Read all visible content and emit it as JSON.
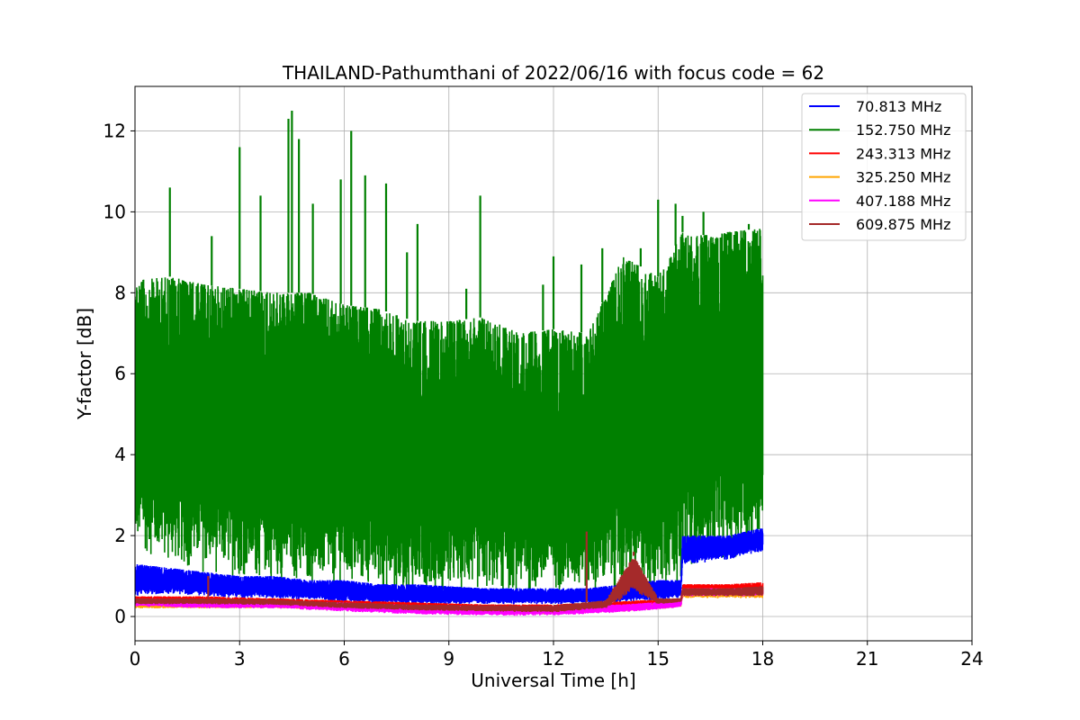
{
  "chart_data": {
    "type": "line",
    "title": "THAILAND-Pathumthani of 2022/06/16 with focus code = 62",
    "xlabel": "Universal Time [h]",
    "ylabel": "Y-factor [dB]",
    "xlim": [
      0,
      24
    ],
    "ylim": [
      -0.6,
      13.1
    ],
    "xticks": [
      0,
      3,
      6,
      9,
      12,
      15,
      18,
      21,
      24
    ],
    "yticks": [
      0,
      2,
      4,
      6,
      8,
      10,
      12
    ],
    "grid": true,
    "legend_position": "top-right",
    "series": [
      {
        "name": " 70.813 MHz",
        "color": "#0000ff",
        "x": [
          0,
          1,
          2,
          3,
          4,
          5,
          6,
          7,
          8,
          9,
          10,
          11,
          12,
          13,
          14,
          15,
          15.65,
          15.7,
          16,
          17,
          18
        ],
        "low": [
          0.5,
          0.55,
          0.5,
          0.45,
          0.45,
          0.4,
          0.35,
          0.3,
          0.3,
          0.3,
          0.3,
          0.3,
          0.3,
          0.3,
          0.35,
          0.4,
          0.45,
          1.3,
          1.3,
          1.4,
          1.6
        ],
        "high": [
          1.3,
          1.2,
          1.1,
          1.0,
          1.0,
          0.9,
          0.9,
          0.8,
          0.8,
          0.75,
          0.7,
          0.7,
          0.7,
          0.7,
          0.8,
          0.9,
          0.9,
          2.0,
          2.0,
          2.0,
          2.2
        ]
      },
      {
        "name": "152.750 MHz",
        "color": "#008000",
        "x": [
          0,
          1,
          2,
          3,
          4,
          5,
          6,
          7,
          8,
          9,
          10,
          11,
          12,
          13,
          14,
          15,
          15.65,
          15.7,
          16,
          17,
          18
        ],
        "low": [
          1.6,
          1.2,
          1.0,
          0.9,
          0.8,
          0.7,
          0.6,
          0.6,
          0.5,
          0.5,
          0.5,
          0.5,
          0.5,
          0.5,
          0.5,
          0.5,
          0.7,
          1.4,
          1.2,
          1.4,
          1.6
        ],
        "high": [
          8.3,
          8.4,
          8.2,
          8.1,
          8.0,
          8.0,
          7.7,
          7.6,
          7.3,
          7.3,
          7.4,
          7.0,
          7.1,
          7.0,
          8.9,
          8.4,
          9.4,
          9.5,
          9.4,
          9.5,
          9.6
        ],
        "spikes": [
          [
            1.0,
            10.6
          ],
          [
            2.2,
            9.4
          ],
          [
            3.0,
            11.6
          ],
          [
            3.6,
            10.4
          ],
          [
            4.4,
            12.3
          ],
          [
            4.5,
            12.5
          ],
          [
            4.7,
            11.8
          ],
          [
            5.1,
            10.2
          ],
          [
            5.9,
            10.8
          ],
          [
            6.2,
            12.0
          ],
          [
            6.6,
            10.9
          ],
          [
            7.2,
            10.7
          ],
          [
            7.8,
            9.0
          ],
          [
            8.1,
            9.7
          ],
          [
            9.5,
            8.1
          ],
          [
            9.9,
            10.4
          ],
          [
            11.7,
            8.2
          ],
          [
            12.0,
            8.9
          ],
          [
            12.8,
            8.7
          ],
          [
            13.4,
            9.1
          ],
          [
            14.5,
            9.1
          ],
          [
            15.0,
            10.3
          ],
          [
            15.5,
            10.2
          ],
          [
            15.7,
            9.9
          ],
          [
            16.3,
            10.0
          ],
          [
            17.0,
            9.3
          ],
          [
            17.6,
            9.7
          ]
        ]
      },
      {
        "name": "243.313 MHz",
        "color": "#ff0000",
        "x": [
          0,
          2,
          4,
          6,
          8,
          10,
          12,
          14,
          15.65,
          15.7,
          16,
          17,
          18
        ],
        "low": [
          0.3,
          0.3,
          0.28,
          0.22,
          0.18,
          0.14,
          0.1,
          0.2,
          0.28,
          0.55,
          0.55,
          0.55,
          0.55
        ],
        "high": [
          0.5,
          0.5,
          0.45,
          0.4,
          0.35,
          0.3,
          0.3,
          0.38,
          0.45,
          0.8,
          0.8,
          0.8,
          0.85
        ]
      },
      {
        "name": "325.250 MHz",
        "color": "#ffa500",
        "x": [
          0,
          2,
          4,
          6,
          8,
          10,
          12,
          14,
          15.65,
          15.7,
          16,
          17,
          18
        ],
        "low": [
          0.2,
          0.2,
          0.2,
          0.15,
          0.12,
          0.08,
          0.05,
          0.12,
          0.22,
          0.45,
          0.45,
          0.45,
          0.45
        ],
        "high": [
          0.35,
          0.35,
          0.35,
          0.3,
          0.25,
          0.2,
          0.18,
          0.28,
          0.35,
          0.7,
          0.7,
          0.7,
          0.7
        ]
      },
      {
        "name": "407.188 MHz",
        "color": "#ff00ff",
        "x": [
          0,
          2,
          4,
          6,
          8,
          10,
          12,
          14,
          15.65,
          15.7,
          16,
          17,
          18
        ],
        "low": [
          0.25,
          0.2,
          0.2,
          0.12,
          0.05,
          0.02,
          0.02,
          0.1,
          0.22,
          0.5,
          0.5,
          0.5,
          0.5
        ],
        "high": [
          0.45,
          0.4,
          0.4,
          0.35,
          0.28,
          0.25,
          0.25,
          0.3,
          0.4,
          0.7,
          0.7,
          0.7,
          0.7
        ]
      },
      {
        "name": "609.875 MHz",
        "color": "#a52a2a",
        "x": [
          0,
          2,
          4,
          6,
          8,
          10,
          12,
          13.5,
          14.3,
          15,
          15.65,
          15.7,
          16,
          17,
          18
        ],
        "low": [
          0.3,
          0.3,
          0.28,
          0.2,
          0.15,
          0.12,
          0.1,
          0.2,
          0.6,
          0.3,
          0.35,
          0.5,
          0.5,
          0.5,
          0.5
        ],
        "high": [
          0.45,
          0.45,
          0.42,
          0.35,
          0.3,
          0.28,
          0.28,
          0.4,
          1.5,
          0.45,
          0.45,
          0.7,
          0.7,
          0.7,
          0.75
        ],
        "spikes": [
          [
            2.1,
            1.0
          ],
          [
            12.95,
            2.1
          ],
          [
            14.3,
            1.6
          ]
        ]
      }
    ]
  }
}
